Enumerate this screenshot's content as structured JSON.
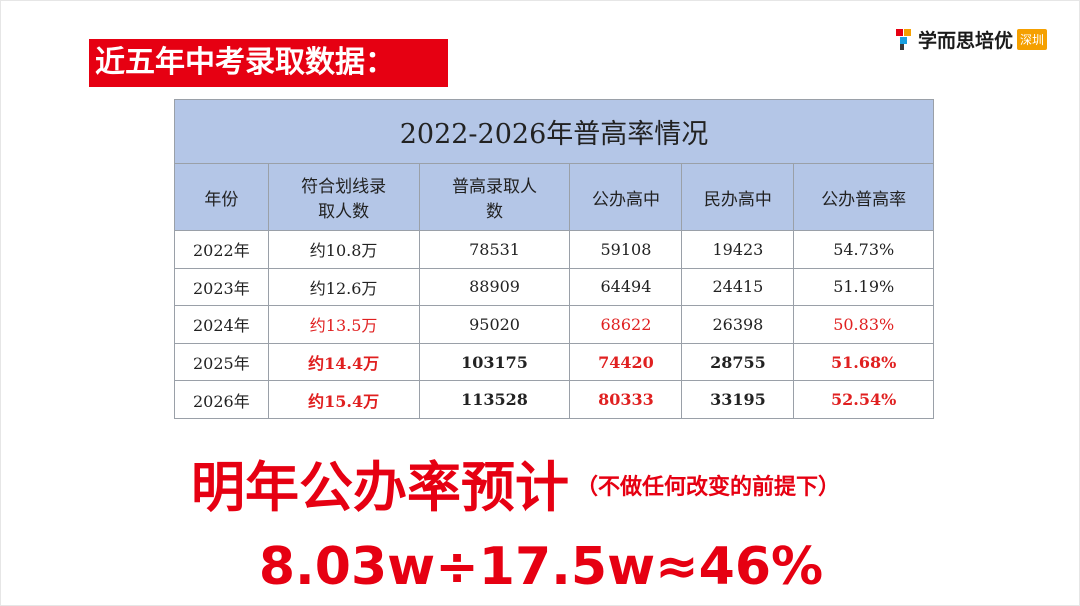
{
  "header": {
    "title": "近五年中考录取数据：",
    "logo": "学而思培优",
    "logo_badge": "深圳"
  },
  "table": {
    "title": "2022-2026年普高率情况",
    "columns": [
      "年份",
      "符合划线录取人数",
      "普高录取人数",
      "公办高中",
      "民办高中",
      "公办普高率"
    ],
    "rows": [
      [
        "2022年",
        "约10.8万",
        "78531",
        "59108",
        "19423",
        "54.73%"
      ],
      [
        "2023年",
        "约12.6万",
        "88909",
        "64494",
        "24415",
        "51.19%"
      ],
      [
        "2024年",
        "约13.5万",
        "95020",
        "68622",
        "26398",
        "50.83%"
      ],
      [
        "2025年",
        "约14.4万",
        "103175",
        "74420",
        "28755",
        "51.68%"
      ],
      [
        "2026年",
        "约15.4万",
        "113528",
        "80333",
        "33195",
        "52.54%"
      ]
    ]
  },
  "forecast": {
    "title": "明年公办率预计",
    "note": "（不做任何改变的前提下）",
    "formula": "8.03w÷17.5w≈46%"
  }
}
